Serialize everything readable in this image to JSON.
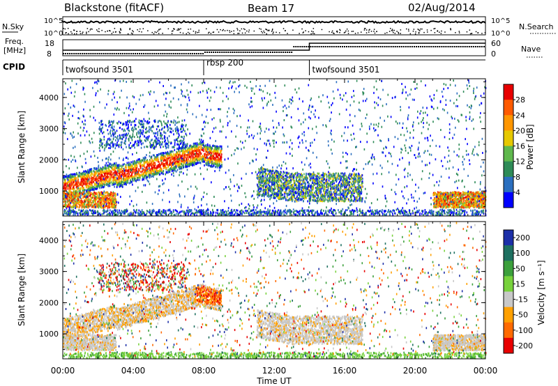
{
  "header": {
    "station": "Blackstone (fitACF)",
    "beam": "Beam 17",
    "date": "02/Aug/2014"
  },
  "param_panels": {
    "nsky_label": "N.Sky",
    "nsearch_label": "N.Search",
    "freq_label_line1": "Freq.",
    "freq_label_line2": "[MHz]",
    "nave_label": "Nave",
    "cpid_label": "CPID",
    "log_ticks": [
      "10^5",
      "10^0"
    ],
    "freq_ticks": [
      "18",
      "8"
    ],
    "nave_ticks": [
      "60",
      "0"
    ],
    "cpid_segments": [
      {
        "name": "twofsound",
        "id": "3501",
        "start_hour": 0,
        "end_hour": 8
      },
      {
        "name": "rbsp",
        "id": "200",
        "start_hour": 8,
        "end_hour": 14
      },
      {
        "name": "twofsound",
        "id": "3501",
        "start_hour": 14,
        "end_hour": 24
      }
    ]
  },
  "power_colorbar": {
    "label": "Power [dB]",
    "ticks": [
      "28",
      "24",
      "20",
      "16",
      "12",
      "8",
      "4"
    ],
    "colors": [
      "#e80000",
      "#ff5a00",
      "#ff9600",
      "#e6c800",
      "#5fb84d",
      "#2e8b57",
      "#2b6fbf",
      "#0000ff"
    ]
  },
  "velocity_colorbar": {
    "label": "Velocity [m s⁻¹]",
    "ticks": [
      "200",
      "100",
      "50",
      "15",
      "-15",
      "-50",
      "-100",
      "-200"
    ],
    "colors": [
      "#1c2fa8",
      "#1e7060",
      "#3ca03c",
      "#78d23c",
      "#c8c8c8",
      "#ffa000",
      "#ff6a00",
      "#e80000"
    ]
  },
  "chart_data": [
    {
      "type": "heatmap",
      "panel": "power",
      "ylabel": "Slant Range [km]",
      "ylim": [
        200,
        4600
      ],
      "xlim": [
        0,
        24
      ],
      "yticks": [
        "4000",
        "3000",
        "2000",
        "1000"
      ]
    },
    {
      "type": "heatmap",
      "panel": "velocity",
      "ylabel": "Slant Range [km]",
      "ylim": [
        200,
        4600
      ],
      "xlim": [
        0,
        24
      ],
      "yticks": [
        "4000",
        "3000",
        "2000",
        "1000"
      ],
      "xlabel": "Time UT",
      "xticks": [
        "00:00",
        "04:00",
        "08:00",
        "12:00",
        "16:00",
        "20:00",
        "00:00"
      ]
    }
  ]
}
